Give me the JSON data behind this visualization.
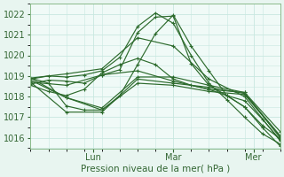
{
  "bg_color": "#e8f5f0",
  "plot_bg_color": "#f0faf7",
  "grid_color": "#c8e8e0",
  "line_color": "#2d6b2d",
  "ylim": [
    1015.5,
    1022.5
  ],
  "xlim": [
    0,
    84
  ],
  "ylabel": "Pression niveau de la mer( hPa )",
  "yticks": [
    1016,
    1017,
    1018,
    1019,
    1020,
    1021,
    1022
  ],
  "xtick_positions": [
    21,
    48,
    75
  ],
  "xtick_labels": [
    "Lun",
    "Mar",
    "Mer"
  ],
  "lines": [
    [
      0,
      1018.6,
      6,
      1018.8,
      12,
      1018.75,
      18,
      1018.65,
      24,
      1019.05,
      30,
      1019.3,
      36,
      1021.1,
      42,
      1021.85,
      48,
      1021.9,
      54,
      1019.6,
      60,
      1018.55,
      66,
      1018.05,
      72,
      1017.5,
      78,
      1016.5,
      84,
      1015.6
    ],
    [
      0,
      1018.85,
      6,
      1019.0,
      12,
      1018.95,
      18,
      1019.05,
      24,
      1019.25,
      30,
      1019.9,
      36,
      1021.4,
      42,
      1022.05,
      48,
      1021.55,
      54,
      1020.0,
      60,
      1018.65,
      66,
      1017.85,
      72,
      1017.0,
      78,
      1016.2,
      84,
      1015.7
    ],
    [
      0,
      1018.9,
      12,
      1019.1,
      24,
      1019.35,
      36,
      1020.85,
      48,
      1020.45,
      60,
      1018.85,
      72,
      1018.0,
      84,
      1015.85
    ],
    [
      0,
      1018.7,
      12,
      1018.55,
      24,
      1019.05,
      36,
      1019.25,
      48,
      1018.75,
      60,
      1018.35,
      72,
      1018.2,
      84,
      1016.0
    ],
    [
      0,
      1018.8,
      12,
      1017.95,
      24,
      1017.35,
      36,
      1018.65,
      48,
      1018.55,
      60,
      1018.25,
      72,
      1018.1,
      84,
      1016.05
    ],
    [
      0,
      1018.9,
      6,
      1018.65,
      12,
      1017.55,
      18,
      1017.35,
      24,
      1017.35,
      30,
      1018.05,
      36,
      1019.55,
      42,
      1021.05,
      48,
      1021.95,
      54,
      1020.45,
      60,
      1019.25,
      66,
      1018.05,
      72,
      1017.5,
      78,
      1016.6,
      84,
      1015.95
    ],
    [
      0,
      1018.7,
      12,
      1017.25,
      24,
      1017.25,
      36,
      1018.85,
      48,
      1018.65,
      60,
      1018.45,
      72,
      1018.15,
      84,
      1016.1
    ],
    [
      0,
      1018.9,
      12,
      1017.95,
      24,
      1017.45,
      36,
      1018.95,
      48,
      1018.95,
      60,
      1018.55,
      72,
      1018.2,
      84,
      1016.3
    ],
    [
      0,
      1018.55,
      6,
      1018.25,
      12,
      1018.05,
      18,
      1018.35,
      24,
      1019.15,
      30,
      1019.55,
      36,
      1019.85,
      42,
      1019.55,
      48,
      1018.85,
      54,
      1018.55,
      60,
      1018.35,
      66,
      1018.05,
      72,
      1017.8,
      78,
      1016.9,
      84,
      1015.9
    ]
  ],
  "marker": "+",
  "markersize": 3.5,
  "linewidth": 0.85
}
